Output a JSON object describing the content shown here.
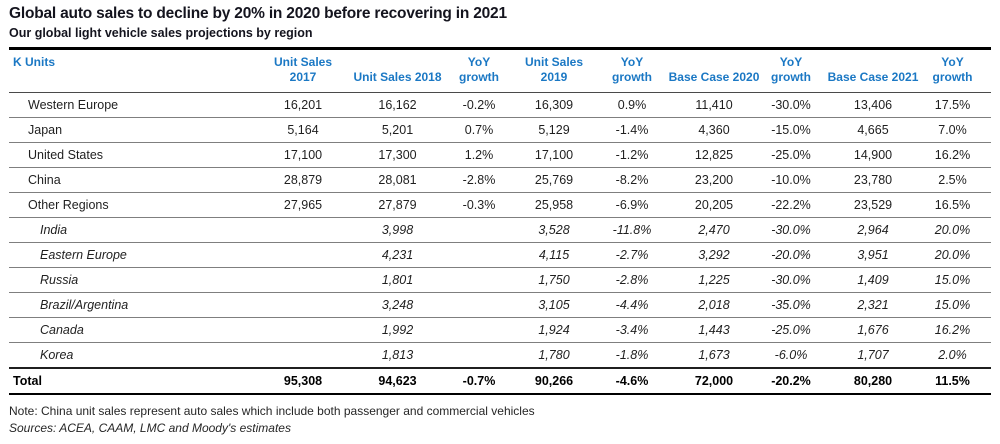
{
  "chart_data": {
    "type": "table",
    "title": "Global auto sales to decline by 20% in 2020 before recovering in 2021",
    "subtitle": "Our global light vehicle sales projections by region",
    "unit_label": "K Units",
    "columns": [
      "Unit Sales 2017",
      "Unit Sales 2018",
      "YoY\ngrowth",
      "Unit Sales 2019",
      "YoY\ngrowth",
      "Base Case 2020",
      "YoY\ngrowth",
      "Base Case 2021",
      "YoY\ngrowth"
    ],
    "rows": [
      {
        "region": "Western Europe",
        "type": "main",
        "cells": [
          "16,201",
          "16,162",
          "-0.2%",
          "16,309",
          "0.9%",
          "11,410",
          "-30.0%",
          "13,406",
          "17.5%"
        ]
      },
      {
        "region": "Japan",
        "type": "main",
        "cells": [
          "5,164",
          "5,201",
          "0.7%",
          "5,129",
          "-1.4%",
          "4,360",
          "-15.0%",
          "4,665",
          "7.0%"
        ]
      },
      {
        "region": "United States",
        "type": "main",
        "cells": [
          "17,100",
          "17,300",
          "1.2%",
          "17,100",
          "-1.2%",
          "12,825",
          "-25.0%",
          "14,900",
          "16.2%"
        ]
      },
      {
        "region": "China",
        "type": "main",
        "cells": [
          "28,879",
          "28,081",
          "-2.8%",
          "25,769",
          "-8.2%",
          "23,200",
          "-10.0%",
          "23,780",
          "2.5%"
        ]
      },
      {
        "region": "Other Regions",
        "type": "main",
        "cells": [
          "27,965",
          "27,879",
          "-0.3%",
          "25,958",
          "-6.9%",
          "20,205",
          "-22.2%",
          "23,529",
          "16.5%"
        ]
      },
      {
        "region": "India",
        "type": "sub",
        "cells": [
          "",
          "3,998",
          "",
          "3,528",
          "-11.8%",
          "2,470",
          "-30.0%",
          "2,964",
          "20.0%"
        ]
      },
      {
        "region": "Eastern Europe",
        "type": "sub",
        "cells": [
          "",
          "4,231",
          "",
          "4,115",
          "-2.7%",
          "3,292",
          "-20.0%",
          "3,951",
          "20.0%"
        ]
      },
      {
        "region": "Russia",
        "type": "sub",
        "cells": [
          "",
          "1,801",
          "",
          "1,750",
          "-2.8%",
          "1,225",
          "-30.0%",
          "1,409",
          "15.0%"
        ]
      },
      {
        "region": "Brazil/Argentina",
        "type": "sub",
        "cells": [
          "",
          "3,248",
          "",
          "3,105",
          "-4.4%",
          "2,018",
          "-35.0%",
          "2,321",
          "15.0%"
        ]
      },
      {
        "region": "Canada",
        "type": "sub",
        "cells": [
          "",
          "1,992",
          "",
          "1,924",
          "-3.4%",
          "1,443",
          "-25.0%",
          "1,676",
          "16.2%"
        ]
      },
      {
        "region": "Korea",
        "type": "sub",
        "cells": [
          "",
          "1,813",
          "",
          "1,780",
          "-1.8%",
          "1,673",
          "-6.0%",
          "1,707",
          "2.0%"
        ]
      },
      {
        "region": "Total",
        "type": "total",
        "cells": [
          "95,308",
          "94,623",
          "-0.7%",
          "90,266",
          "-4.6%",
          "72,000",
          "-20.2%",
          "80,280",
          "11.5%"
        ]
      }
    ]
  },
  "footnotes": {
    "note": "Note: China unit sales represent auto sales which include both passenger and commercial vehicles",
    "sources": "Sources: ACEA, CAAM, LMC and Moody's estimates"
  },
  "colors": {
    "header_blue": "#1b78c4",
    "title_text": "#14141e",
    "body_text": "#1f1f1f",
    "row_separator": "#7f7f7f",
    "thick_rule": "#000000"
  }
}
